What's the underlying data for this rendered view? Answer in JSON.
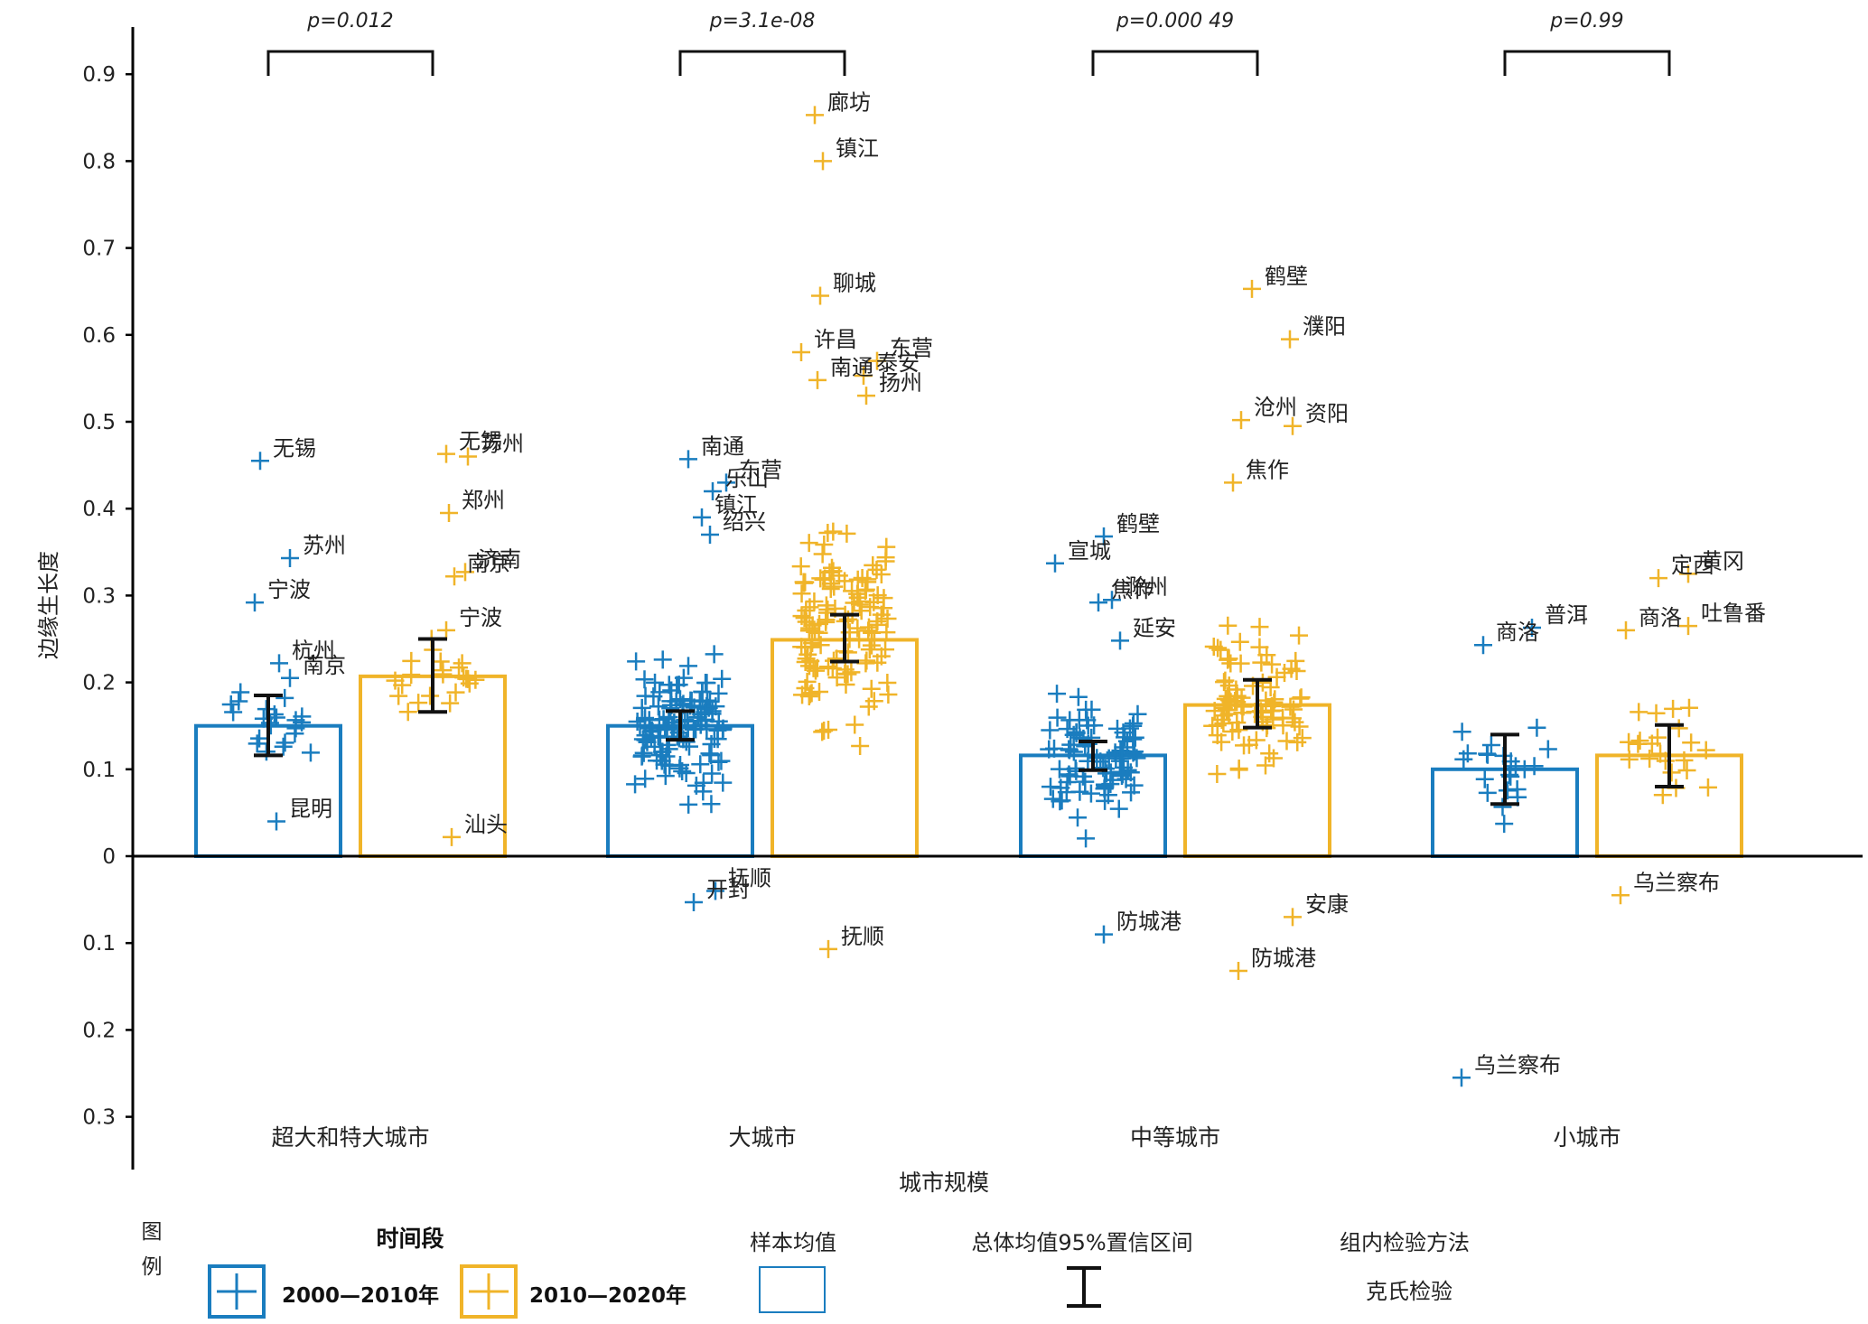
{
  "chart_data": {
    "type": "bar",
    "ylabel": "边缘生长度",
    "xlabel": "城市规模",
    "ylim": [
      -0.3,
      0.95
    ],
    "yticks": [
      0.9,
      0.8,
      0.7,
      0.6,
      0.5,
      0.4,
      0.3,
      0.2,
      0.1,
      0,
      -0.1,
      -0.2,
      -0.3
    ],
    "ytick_labels": [
      "0.9",
      "0.8",
      "0.7",
      "0.6",
      "0.5",
      "0.4",
      "0.3",
      "0.2",
      "0.1",
      "0",
      "0.1",
      "0.2",
      "0.3"
    ],
    "categories": [
      "超大和特大城市",
      "大城市",
      "中等城市",
      "小城市"
    ],
    "p_values": [
      "p=0.012",
      "p=3.1e-08",
      "p=0.000 49",
      "p=0.99"
    ],
    "series": [
      {
        "name": "2000—2010年",
        "color": "#1a7dbf",
        "means": [
          0.15,
          0.15,
          0.116,
          0.1
        ],
        "ci": [
          [
            0.116,
            0.185
          ],
          [
            0.134,
            0.167
          ],
          [
            0.099,
            0.132
          ],
          [
            0.06,
            0.14
          ]
        ]
      },
      {
        "name": "2010—2020年",
        "color": "#f0b429",
        "means": [
          0.207,
          0.249,
          0.174,
          0.116
        ],
        "ci": [
          [
            0.166,
            0.25
          ],
          [
            0.224,
            0.278
          ],
          [
            0.148,
            0.203
          ],
          [
            0.08,
            0.151
          ]
        ]
      }
    ],
    "labeled_points": [
      {
        "group": 0,
        "series": 0,
        "x_offset": -0.03,
        "y": 0.455,
        "label": "无锡"
      },
      {
        "group": 0,
        "series": 0,
        "x_offset": 0.08,
        "y": 0.343,
        "label": "苏州"
      },
      {
        "group": 0,
        "series": 0,
        "x_offset": -0.05,
        "y": 0.292,
        "label": "宁波"
      },
      {
        "group": 0,
        "series": 0,
        "x_offset": 0.04,
        "y": 0.222,
        "label": "杭州"
      },
      {
        "group": 0,
        "series": 0,
        "x_offset": 0.08,
        "y": 0.205,
        "label": "南京"
      },
      {
        "group": 0,
        "series": 0,
        "x_offset": 0.03,
        "y": 0.04,
        "label": "昆明"
      },
      {
        "group": 0,
        "series": 1,
        "x_offset": 0.05,
        "y": 0.463,
        "label": "无锡"
      },
      {
        "group": 0,
        "series": 1,
        "x_offset": 0.13,
        "y": 0.46,
        "label": "苏州"
      },
      {
        "group": 0,
        "series": 1,
        "x_offset": 0.06,
        "y": 0.395,
        "label": "郑州"
      },
      {
        "group": 0,
        "series": 1,
        "x_offset": 0.08,
        "y": 0.322,
        "label": "南京"
      },
      {
        "group": 0,
        "series": 1,
        "x_offset": 0.12,
        "y": 0.327,
        "label": "济南"
      },
      {
        "group": 0,
        "series": 1,
        "x_offset": 0.05,
        "y": 0.26,
        "label": "宁波"
      },
      {
        "group": 0,
        "series": 1,
        "x_offset": 0.07,
        "y": 0.022,
        "label": "汕头"
      },
      {
        "group": 1,
        "series": 0,
        "x_offset": 0.03,
        "y": 0.457,
        "label": "南通"
      },
      {
        "group": 1,
        "series": 0,
        "x_offset": 0.17,
        "y": 0.43,
        "label": "东营"
      },
      {
        "group": 1,
        "series": 0,
        "x_offset": 0.12,
        "y": 0.42,
        "label": "乐山"
      },
      {
        "group": 1,
        "series": 0,
        "x_offset": 0.08,
        "y": 0.39,
        "label": "镇江"
      },
      {
        "group": 1,
        "series": 0,
        "x_offset": 0.11,
        "y": 0.37,
        "label": "绍兴"
      },
      {
        "group": 1,
        "series": 0,
        "x_offset": 0.05,
        "y": -0.053,
        "label": "开封"
      },
      {
        "group": 1,
        "series": 0,
        "x_offset": 0.13,
        "y": -0.04,
        "label": "抚顺"
      },
      {
        "group": 1,
        "series": 1,
        "x_offset": -0.11,
        "y": 0.853,
        "label": "廊坊"
      },
      {
        "group": 1,
        "series": 1,
        "x_offset": -0.08,
        "y": 0.8,
        "label": "镇江"
      },
      {
        "group": 1,
        "series": 1,
        "x_offset": -0.09,
        "y": 0.645,
        "label": "聊城"
      },
      {
        "group": 1,
        "series": 1,
        "x_offset": 0.12,
        "y": 0.57,
        "label": "东营"
      },
      {
        "group": 1,
        "series": 1,
        "x_offset": -0.16,
        "y": 0.58,
        "label": "许昌"
      },
      {
        "group": 1,
        "series": 1,
        "x_offset": 0.07,
        "y": 0.553,
        "label": "泰安"
      },
      {
        "group": 1,
        "series": 1,
        "x_offset": -0.1,
        "y": 0.548,
        "label": "南通"
      },
      {
        "group": 1,
        "series": 1,
        "x_offset": 0.08,
        "y": 0.53,
        "label": "扬州"
      },
      {
        "group": 1,
        "series": 1,
        "x_offset": -0.06,
        "y": -0.107,
        "label": "抚顺"
      },
      {
        "group": 2,
        "series": 0,
        "x_offset": 0.04,
        "y": 0.368,
        "label": "鹤壁"
      },
      {
        "group": 2,
        "series": 0,
        "x_offset": -0.14,
        "y": 0.337,
        "label": "宣城"
      },
      {
        "group": 2,
        "series": 0,
        "x_offset": 0.07,
        "y": 0.295,
        "label": "滁州"
      },
      {
        "group": 2,
        "series": 0,
        "x_offset": 0.02,
        "y": 0.292,
        "label": "焦作"
      },
      {
        "group": 2,
        "series": 0,
        "x_offset": 0.1,
        "y": 0.248,
        "label": "延安"
      },
      {
        "group": 2,
        "series": 0,
        "x_offset": 0.04,
        "y": -0.09,
        "label": "防城港"
      },
      {
        "group": 2,
        "series": 1,
        "x_offset": -0.02,
        "y": 0.653,
        "label": "鹤壁"
      },
      {
        "group": 2,
        "series": 1,
        "x_offset": 0.12,
        "y": 0.595,
        "label": "濮阳"
      },
      {
        "group": 2,
        "series": 1,
        "x_offset": 0.13,
        "y": 0.495,
        "label": "资阳"
      },
      {
        "group": 2,
        "series": 1,
        "x_offset": -0.06,
        "y": 0.502,
        "label": "沧州"
      },
      {
        "group": 2,
        "series": 1,
        "x_offset": -0.09,
        "y": 0.43,
        "label": "焦作"
      },
      {
        "group": 2,
        "series": 1,
        "x_offset": 0.13,
        "y": -0.07,
        "label": "安康"
      },
      {
        "group": 2,
        "series": 1,
        "x_offset": -0.07,
        "y": -0.132,
        "label": "防城港"
      },
      {
        "group": 3,
        "series": 0,
        "x_offset": 0.1,
        "y": 0.263,
        "label": "普洱"
      },
      {
        "group": 3,
        "series": 0,
        "x_offset": -0.08,
        "y": 0.243,
        "label": "商洛"
      },
      {
        "group": 3,
        "series": 0,
        "x_offset": -0.16,
        "y": -0.255,
        "label": "乌兰察布"
      },
      {
        "group": 3,
        "series": 1,
        "x_offset": 0.07,
        "y": 0.325,
        "label": "黄冈"
      },
      {
        "group": 3,
        "series": 1,
        "x_offset": 0.07,
        "y": 0.265,
        "label": "吐鲁番"
      },
      {
        "group": 3,
        "series": 1,
        "x_offset": -0.04,
        "y": 0.32,
        "label": "定西"
      },
      {
        "group": 3,
        "series": 1,
        "x_offset": -0.16,
        "y": 0.26,
        "label": "商洛"
      },
      {
        "group": 3,
        "series": 1,
        "x_offset": -0.18,
        "y": -0.045,
        "label": "乌兰察布"
      }
    ],
    "legend": {
      "title": "图例",
      "period_title": "时间段",
      "series_labels": [
        "2000—2010年",
        "2010—2020年"
      ],
      "mean_title": "样本均值",
      "ci_title": "总体均值95%置信区间",
      "test_title": "组内检验方法",
      "test_value": "克氏检验"
    }
  }
}
